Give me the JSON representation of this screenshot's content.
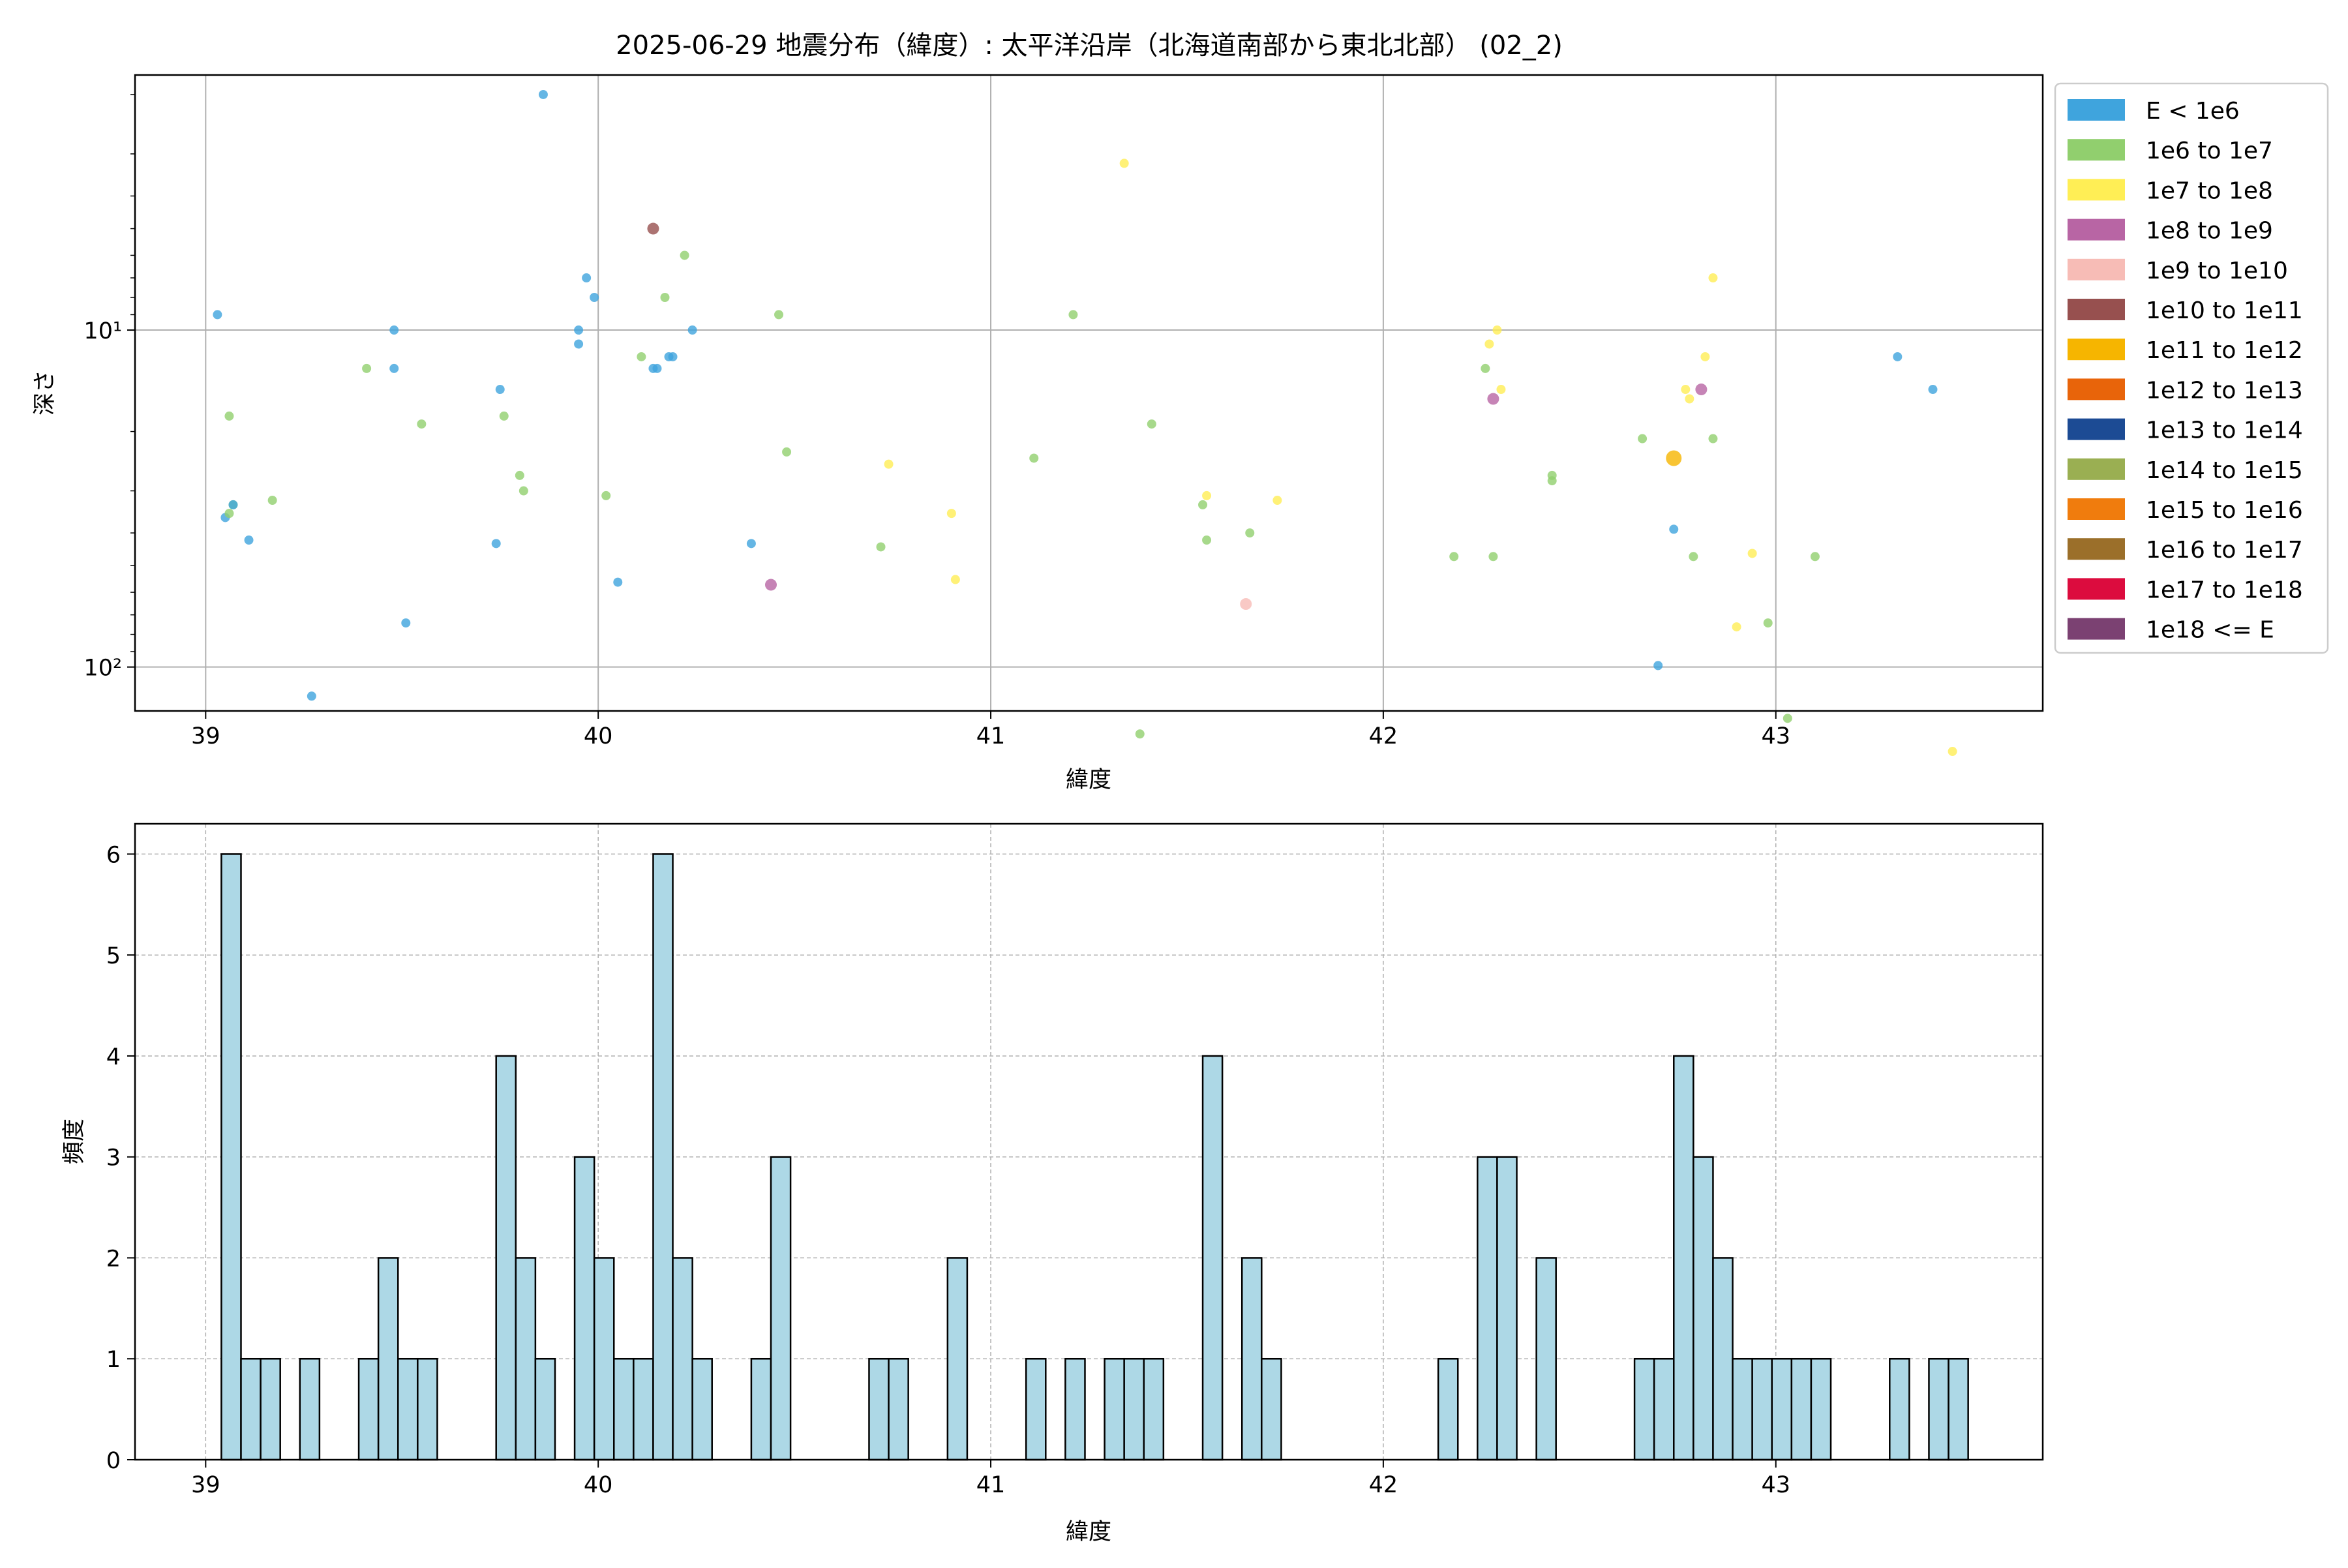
{
  "title": "2025-06-29 地震分布（緯度）: 太平洋沿岸（北海道南部から東北北部） (02_2)",
  "chart_data": [
    {
      "type": "scatter",
      "xlabel": "緯度",
      "ylabel": "深さ",
      "xlim": [
        38.82,
        43.68
      ],
      "ylim_depth": [
        1.75,
        135
      ],
      "y_scale": "log",
      "y_inverted": true,
      "x_ticks": [
        39,
        40,
        41,
        42,
        43
      ],
      "x_tick_labels": [
        "39",
        "40",
        "41",
        "42",
        "43"
      ],
      "y_ticks": [
        10,
        100
      ],
      "y_tick_labels": [
        "10¹",
        "10²"
      ],
      "grid": true,
      "legend_position": "outside-right",
      "legend": [
        {
          "label": "E < 1e6",
          "color": "#3fa4dd"
        },
        {
          "label": "1e6 to 1e7",
          "color": "#91cf6e"
        },
        {
          "label": "1e7 to 1e8",
          "color": "#ffee55"
        },
        {
          "label": "1e8 to 1e9",
          "color": "#b865a4"
        },
        {
          "label": "1e9 to 1e10",
          "color": "#f7bcb6"
        },
        {
          "label": "1e10 to 1e11",
          "color": "#97504f"
        },
        {
          "label": "1e11 to 1e12",
          "color": "#f6b500"
        },
        {
          "label": "1e12 to 1e13",
          "color": "#e8640a"
        },
        {
          "label": "1e13 to 1e14",
          "color": "#1c4b94"
        },
        {
          "label": "1e14 to 1e15",
          "color": "#9aaf52"
        },
        {
          "label": "1e15 to 1e16",
          "color": "#f07c0d"
        },
        {
          "label": "1e16 to 1e17",
          "color": "#9b6f2a"
        },
        {
          "label": "1e17 to 1e18",
          "color": "#dc0c3e"
        },
        {
          "label": "1e18 <= E",
          "color": "#7b4172"
        }
      ],
      "points": [
        {
          "lat": 39.03,
          "depth": 9,
          "cls": 0
        },
        {
          "lat": 39.05,
          "depth": 36,
          "cls": 0
        },
        {
          "lat": 39.06,
          "depth": 18,
          "cls": 1
        },
        {
          "lat": 39.07,
          "depth": 33,
          "cls": 1
        },
        {
          "lat": 39.07,
          "depth": 33,
          "cls": 0
        },
        {
          "lat": 39.11,
          "depth": 42,
          "cls": 0
        },
        {
          "lat": 39.06,
          "depth": 35,
          "cls": 1
        },
        {
          "lat": 39.17,
          "depth": 32,
          "cls": 1
        },
        {
          "lat": 39.27,
          "depth": 122,
          "cls": 0
        },
        {
          "lat": 39.41,
          "depth": 13,
          "cls": 1
        },
        {
          "lat": 39.48,
          "depth": 10,
          "cls": 0
        },
        {
          "lat": 39.48,
          "depth": 13,
          "cls": 0
        },
        {
          "lat": 39.51,
          "depth": 74,
          "cls": 0
        },
        {
          "lat": 39.55,
          "depth": 19,
          "cls": 1
        },
        {
          "lat": 39.74,
          "depth": 43,
          "cls": 0
        },
        {
          "lat": 39.75,
          "depth": 15,
          "cls": 0
        },
        {
          "lat": 39.76,
          "depth": 18,
          "cls": 1
        },
        {
          "lat": 39.8,
          "depth": 27,
          "cls": 1
        },
        {
          "lat": 39.81,
          "depth": 30,
          "cls": 1
        },
        {
          "lat": 39.86,
          "depth": 2.0,
          "cls": 0
        },
        {
          "lat": 39.95,
          "depth": 10,
          "cls": 0
        },
        {
          "lat": 39.95,
          "depth": 11,
          "cls": 0
        },
        {
          "lat": 39.97,
          "depth": 7,
          "cls": 0
        },
        {
          "lat": 39.99,
          "depth": 8,
          "cls": 0
        },
        {
          "lat": 40.02,
          "depth": 31,
          "cls": 1
        },
        {
          "lat": 40.05,
          "depth": 56,
          "cls": 0
        },
        {
          "lat": 40.11,
          "depth": 12,
          "cls": 1
        },
        {
          "lat": 40.14,
          "depth": 13,
          "cls": 0
        },
        {
          "lat": 40.15,
          "depth": 13,
          "cls": 0
        },
        {
          "lat": 40.14,
          "depth": 5,
          "cls": 5
        },
        {
          "lat": 40.17,
          "depth": 8,
          "cls": 1
        },
        {
          "lat": 40.18,
          "depth": 12,
          "cls": 0
        },
        {
          "lat": 40.19,
          "depth": 12,
          "cls": 0
        },
        {
          "lat": 40.22,
          "depth": 6,
          "cls": 1
        },
        {
          "lat": 40.24,
          "depth": 10,
          "cls": 0
        },
        {
          "lat": 40.39,
          "depth": 43,
          "cls": 0
        },
        {
          "lat": 40.44,
          "depth": 57,
          "cls": 3
        },
        {
          "lat": 40.46,
          "depth": 9,
          "cls": 1
        },
        {
          "lat": 40.48,
          "depth": 23,
          "cls": 1
        },
        {
          "lat": 40.72,
          "depth": 44,
          "cls": 1
        },
        {
          "lat": 40.74,
          "depth": 25,
          "cls": 2
        },
        {
          "lat": 40.9,
          "depth": 35,
          "cls": 2
        },
        {
          "lat": 40.91,
          "depth": 55,
          "cls": 2
        },
        {
          "lat": 41.11,
          "depth": 24,
          "cls": 1
        },
        {
          "lat": 41.21,
          "depth": 9,
          "cls": 1
        },
        {
          "lat": 41.34,
          "depth": 3.2,
          "cls": 2
        },
        {
          "lat": 41.38,
          "depth": 158,
          "cls": 1
        },
        {
          "lat": 41.41,
          "depth": 19,
          "cls": 1
        },
        {
          "lat": 41.54,
          "depth": 33,
          "cls": 1
        },
        {
          "lat": 41.55,
          "depth": 31,
          "cls": 2
        },
        {
          "lat": 41.55,
          "depth": 42,
          "cls": 1
        },
        {
          "lat": 41.65,
          "depth": 65,
          "cls": 4
        },
        {
          "lat": 41.66,
          "depth": 40,
          "cls": 1
        },
        {
          "lat": 41.73,
          "depth": 32,
          "cls": 2
        },
        {
          "lat": 42.18,
          "depth": 47,
          "cls": 1
        },
        {
          "lat": 42.26,
          "depth": 13,
          "cls": 1
        },
        {
          "lat": 42.27,
          "depth": 11,
          "cls": 2
        },
        {
          "lat": 42.28,
          "depth": 16,
          "cls": 3
        },
        {
          "lat": 42.28,
          "depth": 47,
          "cls": 1
        },
        {
          "lat": 42.29,
          "depth": 10,
          "cls": 2
        },
        {
          "lat": 42.3,
          "depth": 15,
          "cls": 2
        },
        {
          "lat": 42.43,
          "depth": 28,
          "cls": 1
        },
        {
          "lat": 42.43,
          "depth": 27,
          "cls": 1
        },
        {
          "lat": 42.66,
          "depth": 21,
          "cls": 1
        },
        {
          "lat": 42.7,
          "depth": 99,
          "cls": 0
        },
        {
          "lat": 42.74,
          "depth": 24,
          "cls": 6
        },
        {
          "lat": 42.74,
          "depth": 39,
          "cls": 0
        },
        {
          "lat": 42.77,
          "depth": 15,
          "cls": 2
        },
        {
          "lat": 42.78,
          "depth": 16,
          "cls": 2
        },
        {
          "lat": 42.79,
          "depth": 47,
          "cls": 1
        },
        {
          "lat": 42.81,
          "depth": 15,
          "cls": 3
        },
        {
          "lat": 42.82,
          "depth": 12,
          "cls": 2
        },
        {
          "lat": 42.84,
          "depth": 7,
          "cls": 2
        },
        {
          "lat": 42.84,
          "depth": 21,
          "cls": 1
        },
        {
          "lat": 42.9,
          "depth": 76,
          "cls": 2
        },
        {
          "lat": 42.94,
          "depth": 46,
          "cls": 2
        },
        {
          "lat": 42.98,
          "depth": 74,
          "cls": 1
        },
        {
          "lat": 43.03,
          "depth": 142,
          "cls": 1
        },
        {
          "lat": 43.1,
          "depth": 47,
          "cls": 1
        },
        {
          "lat": 43.31,
          "depth": 12,
          "cls": 0
        },
        {
          "lat": 43.4,
          "depth": 15,
          "cls": 0
        },
        {
          "lat": 43.45,
          "depth": 178,
          "cls": 2
        }
      ]
    },
    {
      "type": "bar",
      "xlabel": "緯度",
      "ylabel": "頻度",
      "xlim": [
        38.82,
        43.68
      ],
      "ylim": [
        0,
        6.3
      ],
      "x_ticks": [
        39,
        40,
        41,
        42,
        43
      ],
      "x_tick_labels": [
        "39",
        "40",
        "41",
        "42",
        "43"
      ],
      "y_ticks": [
        0,
        1,
        2,
        3,
        4,
        5,
        6
      ],
      "y_tick_labels": [
        "0",
        "1",
        "2",
        "3",
        "4",
        "5",
        "6"
      ],
      "grid": true,
      "bin_width": 0.05,
      "color": "#add8e6",
      "bins": [
        {
          "x0": 39.04,
          "v": 6
        },
        {
          "x0": 39.09,
          "v": 1
        },
        {
          "x0": 39.14,
          "v": 1
        },
        {
          "x0": 39.24,
          "v": 1
        },
        {
          "x0": 39.39,
          "v": 1
        },
        {
          "x0": 39.44,
          "v": 2
        },
        {
          "x0": 39.49,
          "v": 1
        },
        {
          "x0": 39.54,
          "v": 1
        },
        {
          "x0": 39.74,
          "v": 4
        },
        {
          "x0": 39.79,
          "v": 2
        },
        {
          "x0": 39.84,
          "v": 1
        },
        {
          "x0": 39.94,
          "v": 3
        },
        {
          "x0": 39.99,
          "v": 2
        },
        {
          "x0": 40.04,
          "v": 1
        },
        {
          "x0": 40.09,
          "v": 1
        },
        {
          "x0": 40.14,
          "v": 6
        },
        {
          "x0": 40.19,
          "v": 2
        },
        {
          "x0": 40.24,
          "v": 1
        },
        {
          "x0": 40.39,
          "v": 1
        },
        {
          "x0": 40.44,
          "v": 3
        },
        {
          "x0": 40.69,
          "v": 1
        },
        {
          "x0": 40.74,
          "v": 1
        },
        {
          "x0": 40.89,
          "v": 2
        },
        {
          "x0": 41.09,
          "v": 1
        },
        {
          "x0": 41.19,
          "v": 1
        },
        {
          "x0": 41.29,
          "v": 1
        },
        {
          "x0": 41.34,
          "v": 1
        },
        {
          "x0": 41.39,
          "v": 1
        },
        {
          "x0": 41.54,
          "v": 4
        },
        {
          "x0": 41.64,
          "v": 2
        },
        {
          "x0": 41.69,
          "v": 1
        },
        {
          "x0": 42.14,
          "v": 1
        },
        {
          "x0": 42.24,
          "v": 3
        },
        {
          "x0": 42.29,
          "v": 3
        },
        {
          "x0": 42.39,
          "v": 2
        },
        {
          "x0": 42.64,
          "v": 1
        },
        {
          "x0": 42.69,
          "v": 1
        },
        {
          "x0": 42.74,
          "v": 4
        },
        {
          "x0": 42.79,
          "v": 3
        },
        {
          "x0": 42.84,
          "v": 2
        },
        {
          "x0": 42.89,
          "v": 1
        },
        {
          "x0": 42.94,
          "v": 1
        },
        {
          "x0": 42.99,
          "v": 1
        },
        {
          "x0": 43.04,
          "v": 1
        },
        {
          "x0": 43.09,
          "v": 1
        },
        {
          "x0": 43.29,
          "v": 1
        },
        {
          "x0": 43.39,
          "v": 1
        },
        {
          "x0": 43.44,
          "v": 1
        }
      ]
    }
  ]
}
